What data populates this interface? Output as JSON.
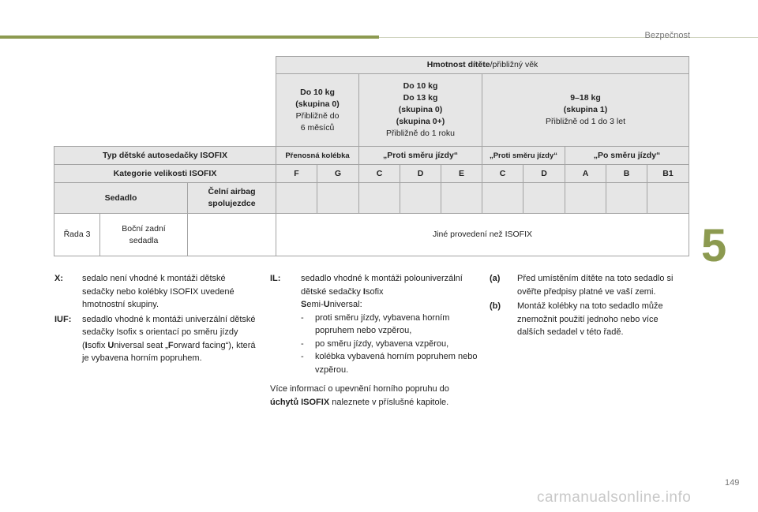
{
  "header": {
    "section": "Bezpečnost",
    "chapter": "5",
    "page": "149"
  },
  "table": {
    "weight_header_bold": "Hmotnost dítěte",
    "weight_header_rest": "/přibližný věk",
    "groups": [
      {
        "l1": "Do 10 kg",
        "l2": "(skupina 0)",
        "l3": "Přibližně do",
        "l4": "6 měsíců"
      },
      {
        "l1": "Do 10 kg",
        "l2": "Do 13 kg",
        "l3": "(skupina 0)",
        "l4": "(skupina 0+)",
        "l5": "Přibližně do 1 roku"
      },
      {
        "l1": "9–18 kg",
        "l2": "(skupina 1)",
        "l3": "Přibližně od 1 do 3 let"
      }
    ],
    "type_label": "Typ dětské autosedačky ISOFIX",
    "types": [
      "Přenosná kolébka",
      "„Proti směru jízdy“",
      "„Proti směru jízdy“",
      "„Po směru jízdy“"
    ],
    "category_label": "Kategorie velikosti ISOFIX",
    "categories": [
      "F",
      "G",
      "C",
      "D",
      "E",
      "C",
      "D",
      "A",
      "B",
      "B1"
    ],
    "seat_label": "Sedadlo",
    "airbag_label": "Čelní airbag spolujezdce",
    "row3": {
      "row": "Řada 3",
      "seat": "Boční zadní sedadla",
      "value": "Jiné provedení než ISOFIX"
    }
  },
  "notes": {
    "x": {
      "label": "X:",
      "text": "sedalo není vhodné k montáži dětské sedačky nebo kolébky ISOFIX uvedené hmotnostní skupiny."
    },
    "iuf": {
      "label": "IUF:",
      "t1": "sedadlo vhodné k montáži univerzální dětské sedačky Isofix s orientací po směru jízdy (",
      "b1": "I",
      "t2": "sofix ",
      "b2": "U",
      "t3": "niversal seat „",
      "b3": "F",
      "t4": "orward facing“), která je vybavena horním popruhem."
    },
    "il": {
      "label": "IL:",
      "t1": "sedadlo vhodné k montáži polouniverzální dětské sedačky ",
      "b1": "I",
      "t2": "sofix ",
      "b2": "S",
      "t3": "emi-",
      "b3": "U",
      "t4": "niversal:",
      "items": [
        "proti směru jízdy, vybavena horním popruhem nebo vzpěrou,",
        "po směru jízdy, vybavena vzpěrou,",
        "kolébka vybavená horním popruhem nebo vzpěrou."
      ],
      "more1": "Více informací o upevnění horního popruhu do ",
      "more_bold": "úchytů ISOFIX",
      "more2": " naleznete v příslušné kapitole."
    },
    "a": {
      "label": "(a)",
      "text": "Před umístěním dítěte na toto sedadlo si ověřte předpisy platné ve vaší zemi."
    },
    "b": {
      "label": "(b)",
      "text": "Montáž kolébky na toto sedadlo může znemožnit použití jednoho nebo více dalších sedadel v této řadě."
    }
  },
  "watermark": "carmanualsonline.info"
}
